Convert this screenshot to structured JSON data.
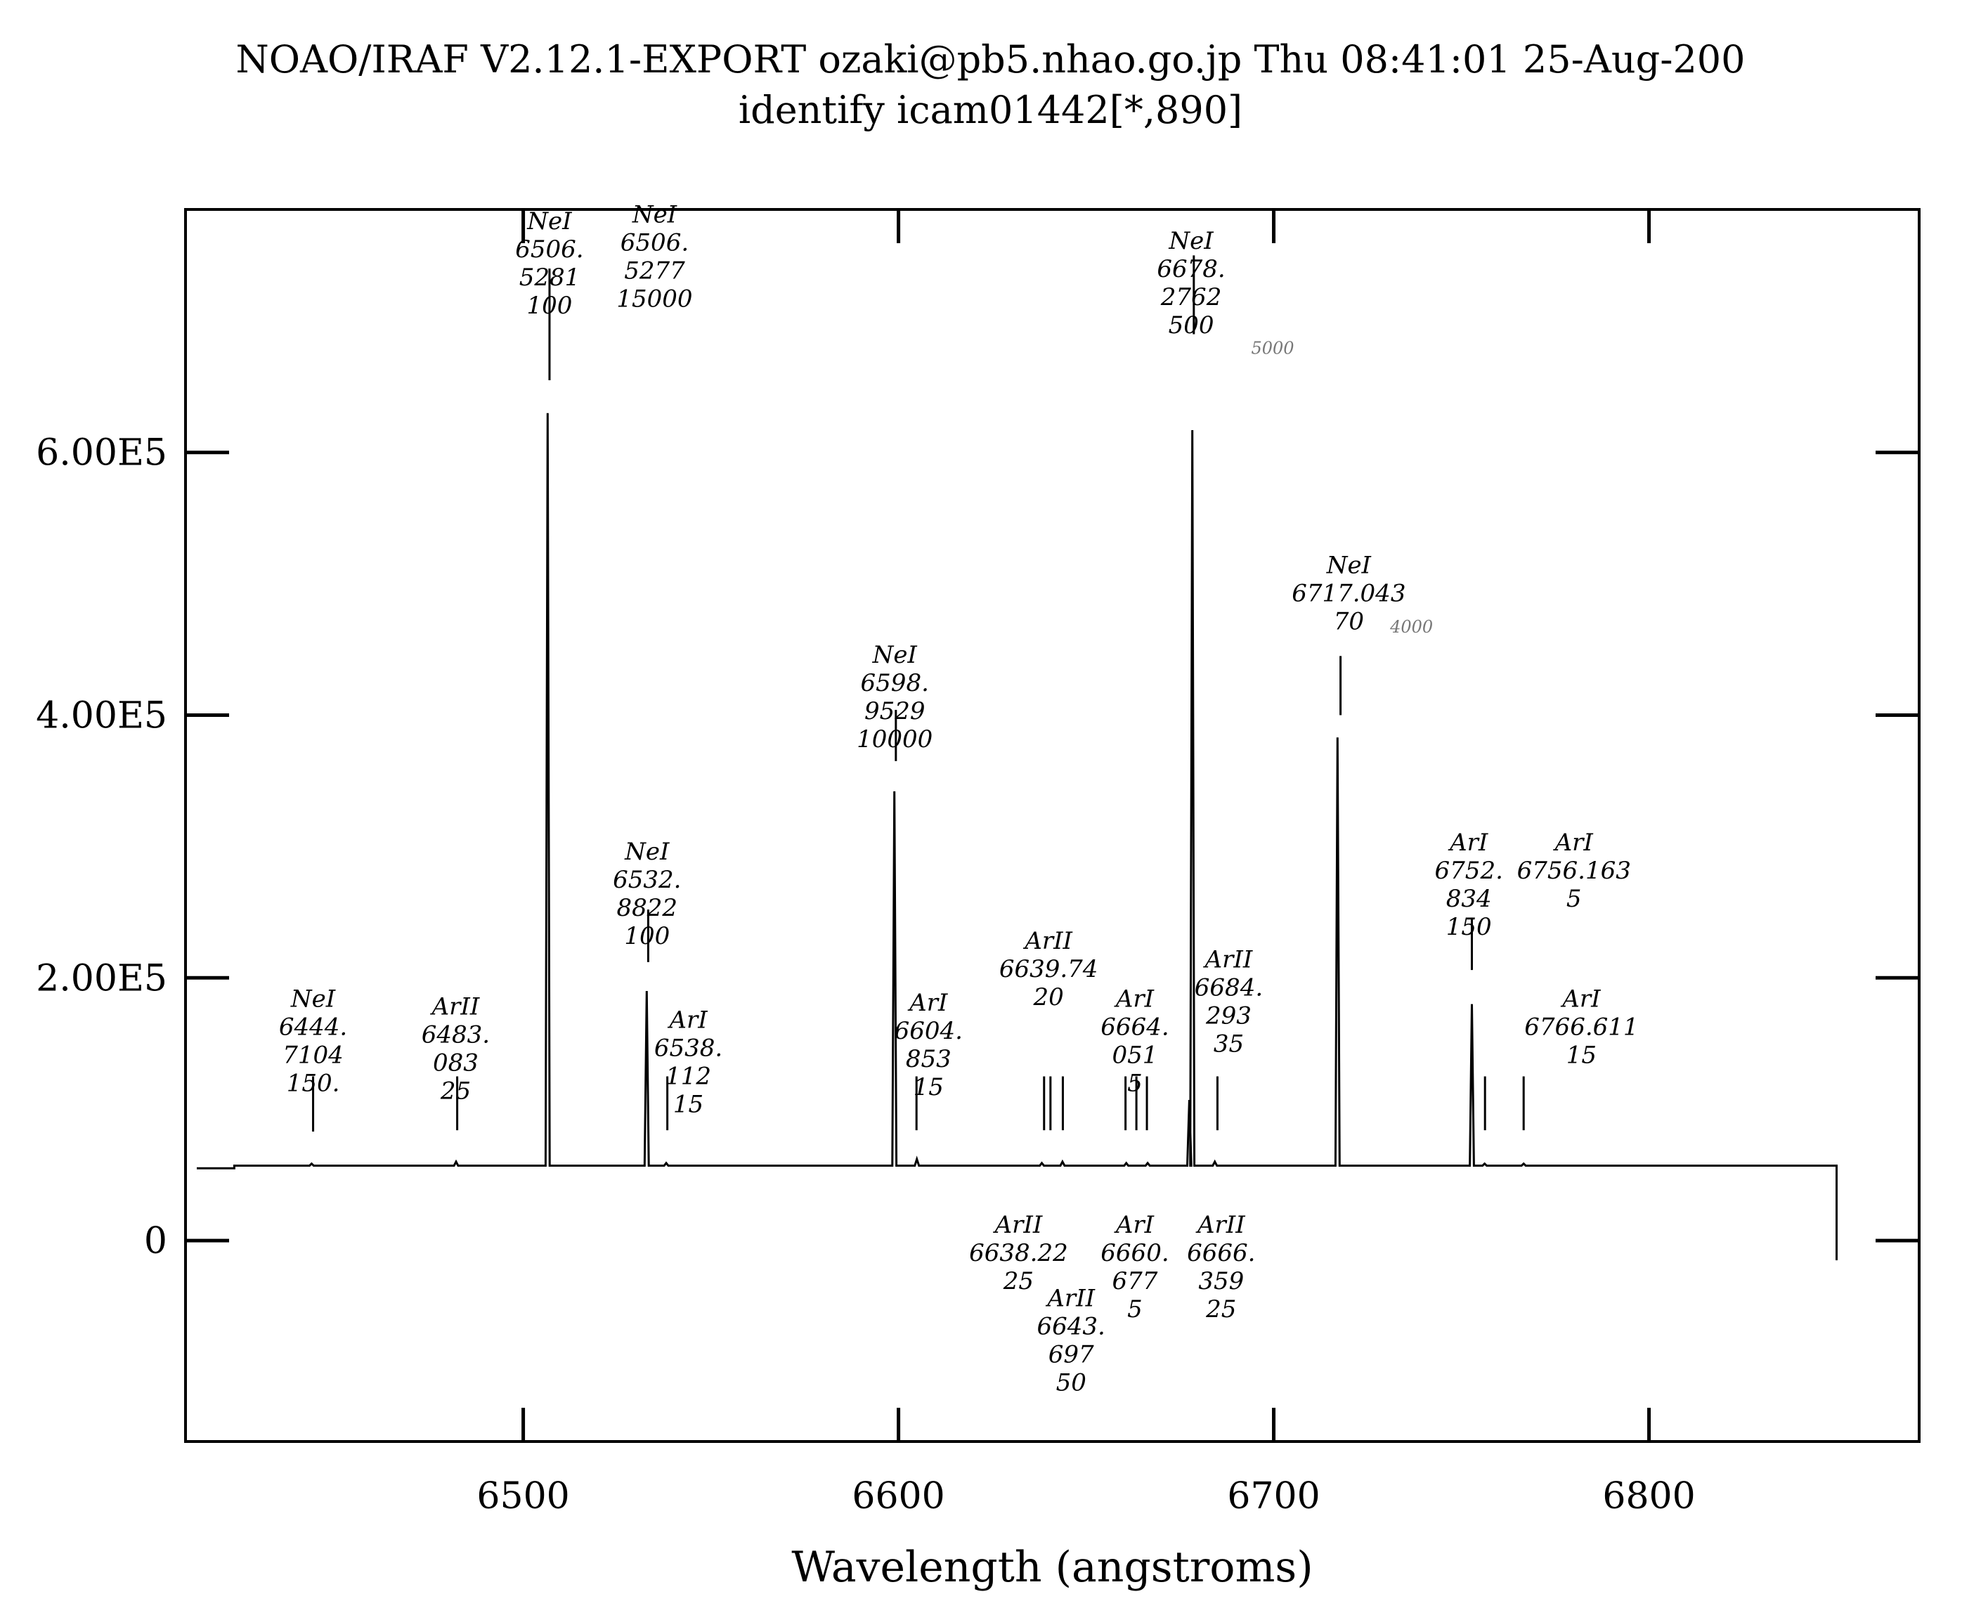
{
  "header": {
    "line1": "NOAO/IRAF V2.12.1-EXPORT ozaki@pb5.nhao.go.jp Thu 08:41:01 25-Aug-200",
    "line2": "identify icam01442[*,890]"
  },
  "chart_data": {
    "type": "line",
    "title": "NOAO/IRAF V2.12.1-EXPORT ozaki@pb5.nhao.go.jp Thu 08:41:01 25-Aug-200",
    "subtitle": "identify icam01442[*,890]",
    "xlabel": "Wavelength (angstroms)",
    "ylabel": "",
    "xlim": [
      6410,
      6872
    ],
    "ylim": [
      -153000,
      785000
    ],
    "x_ticks": [
      6500,
      6600,
      6700,
      6800
    ],
    "x_tick_labels": [
      "6500",
      "6600",
      "6700",
      "6800"
    ],
    "y_ticks": [
      0,
      200000,
      400000,
      600000
    ],
    "y_tick_labels": [
      "0",
      "2.00E5",
      "4.00E5",
      "6.00E5"
    ],
    "grid": false,
    "baseline": 57000,
    "spectrum_range": [
      6423,
      6850
    ],
    "peaks": [
      {
        "x": 6443.6,
        "y": 58500
      },
      {
        "x": 6482.1,
        "y": 60000
      },
      {
        "x": 6506.5,
        "y": 630000
      },
      {
        "x": 6532.9,
        "y": 190000
      },
      {
        "x": 6538.1,
        "y": 59000
      },
      {
        "x": 6598.9,
        "y": 342000
      },
      {
        "x": 6604.9,
        "y": 62000
      },
      {
        "x": 6638.2,
        "y": 59000
      },
      {
        "x": 6643.7,
        "y": 60000
      },
      {
        "x": 6660.7,
        "y": 59000
      },
      {
        "x": 6666.4,
        "y": 59000
      },
      {
        "x": 6677.5,
        "y": 107000
      },
      {
        "x": 6678.3,
        "y": 617000
      },
      {
        "x": 6684.3,
        "y": 60000
      },
      {
        "x": 6717.0,
        "y": 383000
      },
      {
        "x": 6752.8,
        "y": 180000
      },
      {
        "x": 6756.2,
        "y": 58500
      },
      {
        "x": 6766.6,
        "y": 58500
      }
    ],
    "identified_lines": [
      {
        "x": 6444.0,
        "tick": [
          83000,
          125000
        ],
        "above": true
      },
      {
        "x": 6482.4,
        "tick": [
          84000,
          125000
        ],
        "above": true
      },
      {
        "x": 6507.0,
        "tick": [
          655000,
          740000
        ],
        "above": true
      },
      {
        "x": 6533.3,
        "tick": [
          212000,
          252000
        ],
        "above": true
      },
      {
        "x": 6538.4,
        "tick": [
          84000,
          125000
        ],
        "above": true
      },
      {
        "x": 6599.3,
        "tick": [
          365000,
          404000
        ],
        "above": true
      },
      {
        "x": 6604.8,
        "tick": [
          84000,
          125000
        ],
        "above": true
      },
      {
        "x": 6638.8,
        "tick": [
          84000,
          125000
        ],
        "above": false
      },
      {
        "x": 6640.5,
        "tick": [
          84000,
          125000
        ],
        "above": true
      },
      {
        "x": 6643.8,
        "tick": [
          84000,
          125000
        ],
        "above": false
      },
      {
        "x": 6660.5,
        "tick": [
          84000,
          125000
        ],
        "above": false
      },
      {
        "x": 6663.4,
        "tick": [
          84000,
          125000
        ],
        "above": true
      },
      {
        "x": 6666.2,
        "tick": [
          84000,
          125000
        ],
        "above": false
      },
      {
        "x": 6678.7,
        "tick": [
          690000,
          750000
        ],
        "above": true
      },
      {
        "x": 6685.0,
        "tick": [
          84000,
          125000
        ],
        "above": true
      },
      {
        "x": 6717.8,
        "tick": [
          400000,
          445000
        ],
        "above": true
      },
      {
        "x": 6752.8,
        "tick": [
          206000,
          245000
        ],
        "above": true
      },
      {
        "x": 6756.3,
        "tick": [
          84000,
          125000
        ],
        "above": true
      },
      {
        "x": 6766.6,
        "tick": [
          84000,
          125000
        ],
        "above": true
      }
    ],
    "annotations": [
      {
        "x": 6444,
        "y": 178000,
        "lines": [
          "NeI",
          "6444.",
          "7104",
          "150."
        ],
        "color": "#000"
      },
      {
        "x": 6482,
        "y": 172000,
        "lines": [
          "ArII",
          "6483.",
          "083",
          "25"
        ],
        "color": "#000"
      },
      {
        "x": 6507,
        "y": 770000,
        "lines": [
          "NeI",
          "6506.",
          "5281",
          "100"
        ],
        "color": "#000"
      },
      {
        "x": 6535,
        "y": 775000,
        "lines": [
          "NeI",
          "6506.",
          "5277",
          "15000"
        ],
        "color": "#777"
      },
      {
        "x": 6533,
        "y": 290000,
        "lines": [
          "NeI",
          "6532.",
          "8822",
          "100"
        ],
        "color": "#000"
      },
      {
        "x": 6544,
        "y": 162000,
        "lines": [
          "ArI",
          "6538.",
          "112",
          "15"
        ],
        "color": "#000"
      },
      {
        "x": 6599,
        "y": 440000,
        "lines": [
          "NeI",
          "6598.",
          "9529",
          "10000"
        ],
        "color": "#000"
      },
      {
        "x": 6608,
        "y": 175000,
        "lines": [
          "ArI",
          "6604.",
          "853",
          "15"
        ],
        "color": "#000"
      },
      {
        "x": 6640,
        "y": 222000,
        "lines": [
          "ArII",
          "6639.74",
          "20"
        ],
        "color": "#000"
      },
      {
        "x": 6663,
        "y": 178000,
        "lines": [
          "ArI",
          "6664.",
          "051",
          "5"
        ],
        "color": "#000"
      },
      {
        "x": 6678,
        "y": 755000,
        "lines": [
          "NeI",
          "6678.",
          "2762",
          "500"
        ],
        "color": "#000"
      },
      {
        "x": 6688,
        "y": 208000,
        "lines": [
          "ArII",
          "6684.",
          "293",
          "35"
        ],
        "color": "#000"
      },
      {
        "x": 6720,
        "y": 508000,
        "lines": [
          "NeI",
          "6717.043",
          "70"
        ],
        "color": "#000"
      },
      {
        "x": 6752,
        "y": 297000,
        "lines": [
          "ArI",
          "6752.",
          "834",
          "150"
        ],
        "color": "#000"
      },
      {
        "x": 6780,
        "y": 297000,
        "lines": [
          "ArI",
          "6756.163",
          "5"
        ],
        "color": "#000"
      },
      {
        "x": 6782,
        "y": 178000,
        "lines": [
          "ArI",
          "6766.611",
          "15"
        ],
        "color": "#000"
      },
      {
        "x": 6632,
        "y": 6000,
        "lines": [
          "ArII",
          "6638.22",
          "25"
        ],
        "color": "#000"
      },
      {
        "x": 6646,
        "y": -50000,
        "lines": [
          "ArII",
          "6643.",
          "697",
          "50"
        ],
        "color": "#000"
      },
      {
        "x": 6663,
        "y": 6000,
        "lines": [
          "ArI",
          "6660.",
          "677",
          "5"
        ],
        "color": "#000"
      },
      {
        "x": 6686,
        "y": 6000,
        "lines": [
          "ArII",
          "6666.",
          "359",
          "25"
        ],
        "color": "#000"
      }
    ],
    "side_notes": [
      {
        "x": 6694,
        "y": 675000,
        "text": "5000"
      },
      {
        "x": 6731,
        "y": 463000,
        "text": "4000"
      }
    ]
  }
}
